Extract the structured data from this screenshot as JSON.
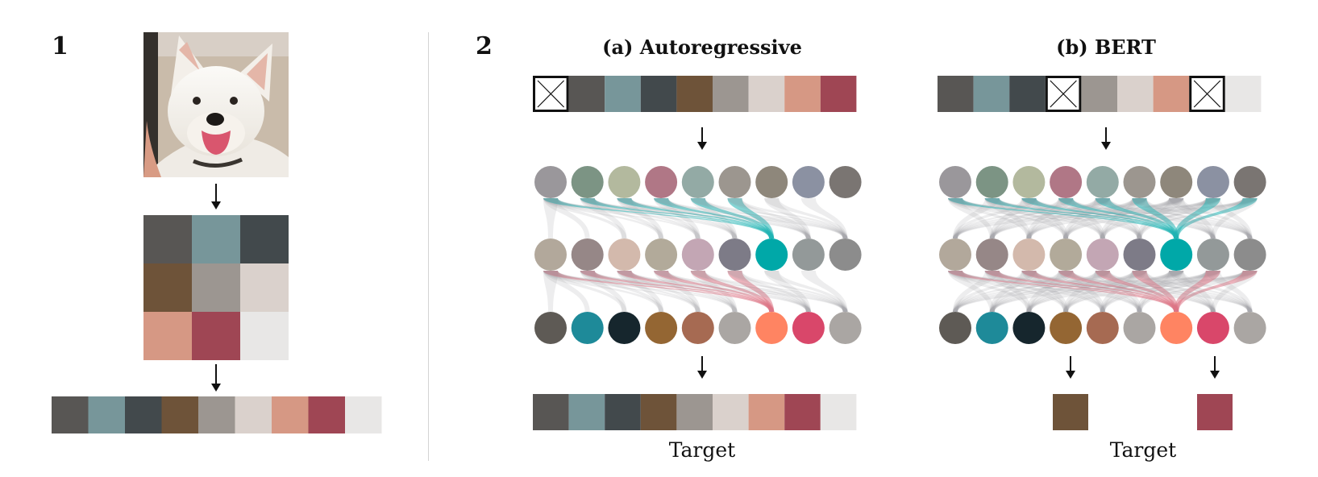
{
  "panel1": {
    "number": "1",
    "photo_icon": "dog-photo",
    "palette": [
      "#585654",
      "#77969A",
      "#42494C",
      "#6E5339",
      "#9C9691",
      "#DAD1CC",
      "#D69884",
      "#9F4654",
      "#E8E7E6"
    ]
  },
  "panel2": {
    "number": "2",
    "masked_icon": "masked-token-icon",
    "autoregressive": {
      "title": "(a) Autoregressive",
      "input_row": [
        "mask",
        "#585654",
        "#77969A",
        "#42494C",
        "#6E5339",
        "#9C9691",
        "#DAD1CC",
        "#D69884",
        "#9F4654"
      ],
      "target_row": [
        "#585654",
        "#77969A",
        "#42494C",
        "#6E5339",
        "#9C9691",
        "#DAD1CC",
        "#D69884",
        "#9F4654",
        "#E8E7E6"
      ],
      "target_label": "Target",
      "highlight_color_top": "#1FB3B3",
      "highlight_color_bottom": "#DC7485"
    },
    "bert": {
      "title": "(b) BERT",
      "input_row": [
        "#585654",
        "#77969A",
        "#42494C",
        "mask",
        "#9C9691",
        "#DAD1CC",
        "#D69884",
        "mask",
        "#E8E7E6"
      ],
      "target_row": [
        "#6E5339",
        "#9F4654"
      ],
      "target_label": "Target",
      "highlight_color_top": "#1FB3B3",
      "highlight_color_bottom": "#DC7485"
    },
    "circle_rows": [
      [
        "#9A979B",
        "#7C9484",
        "#B3B99E",
        "#B07786",
        "#93AAA5",
        "#9C968F",
        "#8E877B",
        "#8B91A2",
        "#7A7572"
      ],
      [
        "#B2A89B",
        "#968787",
        "#D3B9AC",
        "#B2AA9A",
        "#C3A6B4",
        "#7D7B87",
        "#00A8A8",
        "#939999",
        "#8C8C8C"
      ],
      [
        "#5E5A55",
        "#1E8A99",
        "#16262D",
        "#946633",
        "#A66A52",
        "#AAA6A3",
        "#FF8462",
        "#D9476A",
        "#AAA6A3"
      ]
    ]
  }
}
